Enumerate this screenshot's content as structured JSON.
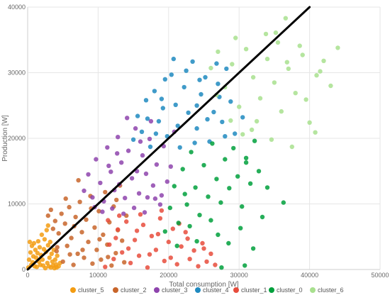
{
  "chart_data": {
    "type": "scatter",
    "xlabel": "Total consumption [W]",
    "ylabel": "Production [W]",
    "xlim": [
      0,
      50000
    ],
    "ylim": [
      0,
      40000
    ],
    "x_ticks": [
      "0",
      "10000",
      "20000",
      "30000",
      "40000",
      "50000"
    ],
    "y_ticks": [
      "0",
      "10000",
      "20000",
      "30000",
      "40000"
    ],
    "grid": true,
    "legend_position": "bottom",
    "reference_line": {
      "x": [
        0,
        40000
      ],
      "y": [
        0,
        40000
      ],
      "color": "#000000"
    },
    "series": [
      {
        "name": "cluster_5",
        "color": "#f39c12",
        "points": [
          [
            100,
            300
          ],
          [
            200,
            1500
          ],
          [
            300,
            4200
          ],
          [
            400,
            2600
          ],
          [
            500,
            700
          ],
          [
            600,
            3600
          ],
          [
            700,
            1100
          ],
          [
            800,
            2000
          ],
          [
            900,
            4000
          ],
          [
            1000,
            500
          ],
          [
            1100,
            3000
          ],
          [
            1200,
            1800
          ],
          [
            1300,
            400
          ],
          [
            1400,
            2500
          ],
          [
            1500,
            4300
          ],
          [
            1600,
            1200
          ],
          [
            1700,
            3400
          ],
          [
            1800,
            700
          ],
          [
            1900,
            2200
          ],
          [
            2000,
            5300
          ],
          [
            2100,
            1500
          ],
          [
            2200,
            600
          ],
          [
            2300,
            3100
          ],
          [
            2400,
            4600
          ],
          [
            2500,
            200
          ],
          [
            2600,
            2700
          ],
          [
            2700,
            6000
          ],
          [
            2800,
            1000
          ],
          [
            2900,
            3700
          ],
          [
            3000,
            500
          ],
          [
            3100,
            1800
          ],
          [
            3200,
            4200
          ],
          [
            3300,
            300
          ],
          [
            3400,
            2400
          ],
          [
            3500,
            1200
          ],
          [
            3600,
            600
          ],
          [
            3700,
            3000
          ],
          [
            3800,
            200
          ],
          [
            3900,
            1500
          ],
          [
            4000,
            800
          ],
          [
            4100,
            300
          ],
          [
            4200,
            2100
          ],
          [
            4400,
            500
          ],
          [
            4600,
            1000
          ],
          [
            2900,
            6700
          ]
        ]
      },
      {
        "name": "cluster_2",
        "color": "#c8652a",
        "points": [
          [
            2900,
            8200
          ],
          [
            3300,
            9100
          ],
          [
            3600,
            6200
          ],
          [
            4100,
            2800
          ],
          [
            4400,
            5500
          ],
          [
            4800,
            8500
          ],
          [
            5000,
            1200
          ],
          [
            5300,
            7000
          ],
          [
            5600,
            3600
          ],
          [
            5900,
            9500
          ],
          [
            6200,
            4800
          ],
          [
            6500,
            700
          ],
          [
            6800,
            8000
          ],
          [
            7100,
            2400
          ],
          [
            7400,
            10300
          ],
          [
            7700,
            5700
          ],
          [
            8000,
            1800
          ],
          [
            8300,
            7600
          ],
          [
            8600,
            4200
          ],
          [
            8900,
            11200
          ],
          [
            9200,
            900
          ],
          [
            9500,
            6400
          ],
          [
            9800,
            3000
          ],
          [
            10100,
            8900
          ],
          [
            10400,
            1500
          ],
          [
            10700,
            5300
          ],
          [
            11000,
            11800
          ],
          [
            11300,
            3800
          ],
          [
            11600,
            7200
          ],
          [
            11900,
            600
          ],
          [
            12200,
            9600
          ],
          [
            12500,
            2500
          ],
          [
            12800,
            6000
          ],
          [
            13100,
            12800
          ],
          [
            13400,
            4400
          ],
          [
            13700,
            1100
          ],
          [
            14000,
            8200
          ],
          [
            4200,
            3400
          ],
          [
            5400,
            10800
          ],
          [
            6600,
            6600
          ],
          [
            7800,
            3000
          ],
          [
            9000,
            9300
          ],
          [
            10200,
            4600
          ],
          [
            11400,
            1900
          ],
          [
            12600,
            10600
          ],
          [
            7200,
            13600
          ],
          [
            3900,
            7400
          ],
          [
            6000,
            2300
          ]
        ]
      },
      {
        "name": "cluster_3",
        "color": "#8e44ad",
        "points": [
          [
            8000,
            12000
          ],
          [
            8600,
            14500
          ],
          [
            9200,
            11000
          ],
          [
            9700,
            16800
          ],
          [
            10300,
            13200
          ],
          [
            10800,
            10400
          ],
          [
            11300,
            18600
          ],
          [
            11800,
            14900
          ],
          [
            12300,
            12100
          ],
          [
            12800,
            20200
          ],
          [
            13300,
            16300
          ],
          [
            13800,
            10900
          ],
          [
            14300,
            18100
          ],
          [
            14800,
            13900
          ],
          [
            15300,
            21500
          ],
          [
            15800,
            11600
          ],
          [
            16300,
            17400
          ],
          [
            16800,
            14600
          ],
          [
            17300,
            19900
          ],
          [
            17800,
            12800
          ],
          [
            18300,
            16000
          ],
          [
            18800,
            9900
          ],
          [
            19300,
            18800
          ],
          [
            19800,
            13400
          ],
          [
            20300,
            15700
          ],
          [
            10600,
            8800
          ],
          [
            12000,
            9300
          ],
          [
            13600,
            8500
          ],
          [
            15100,
            9400
          ],
          [
            16600,
            8700
          ],
          [
            18100,
            10800
          ],
          [
            14100,
            23100
          ],
          [
            17500,
            22600
          ],
          [
            11500,
            15800
          ],
          [
            12700,
            17700
          ],
          [
            16000,
            19500
          ],
          [
            19000,
            11300
          ],
          [
            20800,
            21000
          ],
          [
            9500,
            9500
          ],
          [
            13000,
            13000
          ],
          [
            15500,
            15000
          ],
          [
            17000,
            11000
          ]
        ]
      },
      {
        "name": "cluster_4",
        "color": "#1f8ac0",
        "points": [
          [
            15000,
            19800
          ],
          [
            15600,
            23400
          ],
          [
            16200,
            21000
          ],
          [
            16800,
            25800
          ],
          [
            17400,
            18700
          ],
          [
            18000,
            27200
          ],
          [
            18600,
            22600
          ],
          [
            19200,
            24600
          ],
          [
            19800,
            20300
          ],
          [
            20400,
            29700
          ],
          [
            21000,
            25100
          ],
          [
            21600,
            18600
          ],
          [
            22200,
            27800
          ],
          [
            22800,
            23900
          ],
          [
            23400,
            31700
          ],
          [
            24000,
            21500
          ],
          [
            24600,
            26700
          ],
          [
            25200,
            29300
          ],
          [
            25800,
            19500
          ],
          [
            26400,
            24000
          ],
          [
            27000,
            28300
          ],
          [
            27600,
            22500
          ],
          [
            28200,
            30600
          ],
          [
            28800,
            25600
          ],
          [
            29400,
            20700
          ],
          [
            19500,
            29000
          ],
          [
            20700,
            32100
          ],
          [
            22500,
            30300
          ],
          [
            24400,
            28900
          ],
          [
            26800,
            31400
          ],
          [
            21300,
            21900
          ],
          [
            23700,
            19300
          ],
          [
            25500,
            22900
          ],
          [
            28000,
            20300
          ],
          [
            18200,
            20700
          ],
          [
            27200,
            26300
          ],
          [
            30500,
            23200
          ],
          [
            17000,
            23000
          ],
          [
            19000,
            26000
          ],
          [
            24000,
            25000
          ]
        ]
      },
      {
        "name": "cluster_1",
        "color": "#e74c3c",
        "points": [
          [
            11000,
            400
          ],
          [
            11600,
            3800
          ],
          [
            12200,
            1600
          ],
          [
            12800,
            6100
          ],
          [
            13400,
            2600
          ],
          [
            14000,
            7300
          ],
          [
            14600,
            1000
          ],
          [
            15200,
            4500
          ],
          [
            15800,
            2100
          ],
          [
            16400,
            6800
          ],
          [
            17000,
            300
          ],
          [
            17600,
            5100
          ],
          [
            18200,
            3000
          ],
          [
            18800,
            7800
          ],
          [
            19400,
            1300
          ],
          [
            20000,
            4200
          ],
          [
            20600,
            6200
          ],
          [
            21200,
            800
          ],
          [
            21800,
            3500
          ],
          [
            22400,
            5700
          ],
          [
            23000,
            1600
          ],
          [
            23600,
            2900
          ],
          [
            24200,
            500
          ],
          [
            24800,
            4000
          ],
          [
            25400,
            1200
          ],
          [
            26000,
            2400
          ],
          [
            26600,
            700
          ],
          [
            11400,
            7500
          ],
          [
            13000,
            8200
          ],
          [
            16000,
            8400
          ],
          [
            19000,
            9000
          ],
          [
            21500,
            7000
          ],
          [
            17300,
            2300
          ],
          [
            15500,
            5900
          ],
          [
            12500,
            4800
          ],
          [
            14300,
            3200
          ],
          [
            18500,
            5400
          ],
          [
            20300,
            1800
          ],
          [
            22700,
            4700
          ],
          [
            25000,
            3200
          ]
        ]
      },
      {
        "name": "cluster_0",
        "color": "#00a03c",
        "points": [
          [
            19500,
            5800
          ],
          [
            20200,
            9400
          ],
          [
            20800,
            12700
          ],
          [
            21400,
            7100
          ],
          [
            22000,
            15300
          ],
          [
            22600,
            9900
          ],
          [
            23200,
            17900
          ],
          [
            23800,
            12500
          ],
          [
            24400,
            8300
          ],
          [
            25000,
            15900
          ],
          [
            25600,
            11100
          ],
          [
            26200,
            19200
          ],
          [
            26800,
            13800
          ],
          [
            27400,
            10200
          ],
          [
            28000,
            16800
          ],
          [
            28600,
            12400
          ],
          [
            29200,
            18500
          ],
          [
            29800,
            14200
          ],
          [
            30400,
            9600
          ],
          [
            31000,
            16300
          ],
          [
            31600,
            13100
          ],
          [
            32200,
            19600
          ],
          [
            32800,
            15000
          ],
          [
            24000,
            4300
          ],
          [
            27000,
            5300
          ],
          [
            33300,
            8000
          ],
          [
            36300,
            10200
          ],
          [
            30200,
            6300
          ],
          [
            32000,
            3200
          ],
          [
            30800,
            600
          ],
          [
            27500,
            300
          ],
          [
            21200,
            3600
          ],
          [
            23000,
            6600
          ],
          [
            26000,
            7500
          ],
          [
            28500,
            4000
          ],
          [
            34000,
            12500
          ],
          [
            31000,
            17000
          ],
          [
            22300,
            11500
          ]
        ]
      },
      {
        "name": "cluster_6",
        "color": "#a8e08e",
        "points": [
          [
            26000,
            30700
          ],
          [
            27000,
            33200
          ],
          [
            28000,
            27800
          ],
          [
            29000,
            31300
          ],
          [
            30000,
            24800
          ],
          [
            31000,
            33600
          ],
          [
            32000,
            29300
          ],
          [
            33000,
            26100
          ],
          [
            34000,
            32100
          ],
          [
            35000,
            28500
          ],
          [
            36000,
            24100
          ],
          [
            37000,
            30600
          ],
          [
            38000,
            26900
          ],
          [
            39000,
            32700
          ],
          [
            40000,
            22400
          ],
          [
            41000,
            29600
          ],
          [
            42000,
            31800
          ],
          [
            43000,
            28000
          ],
          [
            44000,
            33800
          ],
          [
            36600,
            38300
          ],
          [
            35200,
            36100
          ],
          [
            30500,
            20600
          ],
          [
            32500,
            22600
          ],
          [
            34600,
            19800
          ],
          [
            37500,
            18700
          ],
          [
            40800,
            20900
          ],
          [
            29500,
            35300
          ],
          [
            33800,
            35900
          ],
          [
            38600,
            34100
          ],
          [
            26800,
            26600
          ],
          [
            28800,
            22700
          ],
          [
            31800,
            21300
          ],
          [
            36800,
            31600
          ],
          [
            39500,
            25900
          ],
          [
            41500,
            30200
          ],
          [
            35500,
            34600
          ]
        ]
      }
    ]
  }
}
